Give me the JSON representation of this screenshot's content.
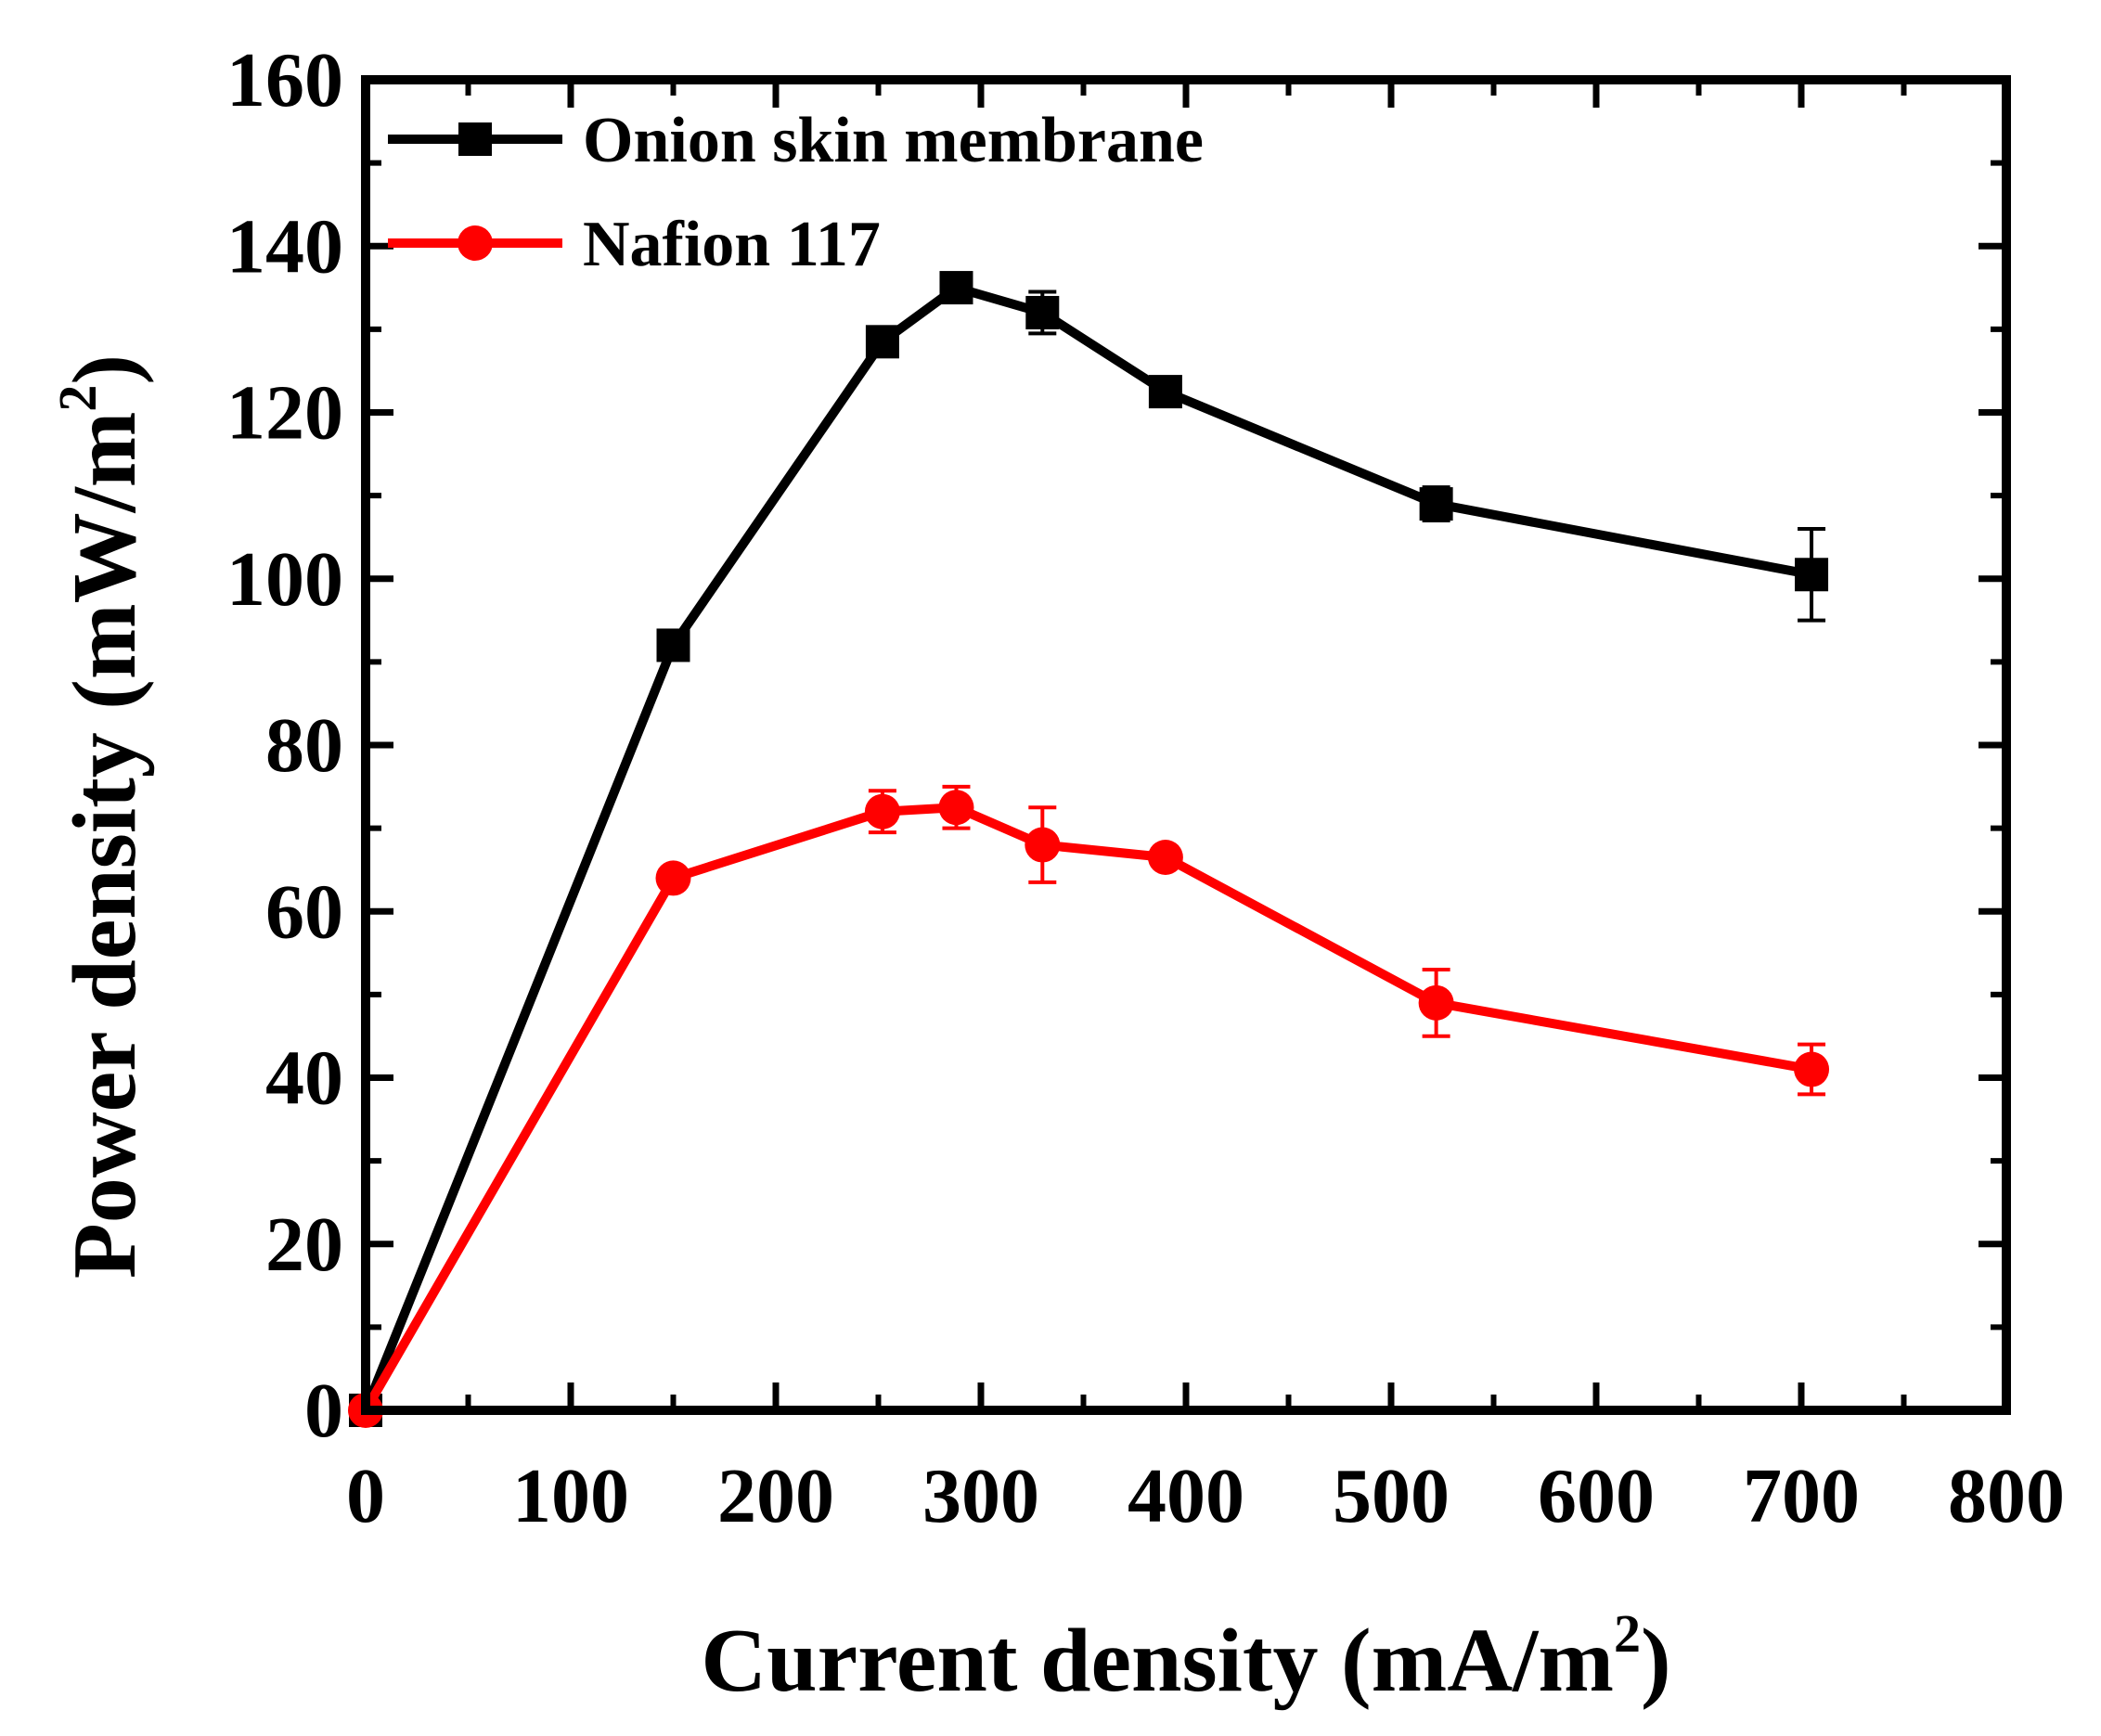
{
  "chart_data": {
    "type": "line",
    "title": "",
    "xlabel": "Current density (mA/m",
    "xlabel_sup": "2",
    "xlabel_end": ")",
    "ylabel": "Power density (mW/m",
    "ylabel_sup": "2",
    "ylabel_end": ")",
    "xlim": [
      0,
      800
    ],
    "ylim": [
      0,
      160
    ],
    "xticks": [
      0,
      100,
      200,
      300,
      400,
      500,
      600,
      700,
      800
    ],
    "yticks": [
      0,
      20,
      40,
      60,
      80,
      100,
      120,
      140,
      160
    ],
    "legend_position": "top-left",
    "grid": false,
    "series": [
      {
        "name": "Onion skin membrane",
        "color": "#000000",
        "marker": "square",
        "x": [
          0,
          150,
          252,
          288,
          330,
          390,
          522,
          705
        ],
        "y": [
          0,
          92,
          128.5,
          135,
          132,
          122.5,
          109,
          100.5
        ],
        "err": [
          0,
          1,
          1.5,
          1.5,
          2.5,
          1.5,
          2,
          5.5
        ]
      },
      {
        "name": "Nafion 117",
        "color": "#ff0000",
        "marker": "circle",
        "x": [
          0,
          150,
          252,
          288,
          330,
          390,
          522,
          705
        ],
        "y": [
          0,
          64,
          72,
          72.5,
          68,
          66.5,
          49,
          41
        ],
        "err": [
          0,
          1,
          2.5,
          2.5,
          4.5,
          1,
          4,
          3
        ]
      }
    ]
  }
}
